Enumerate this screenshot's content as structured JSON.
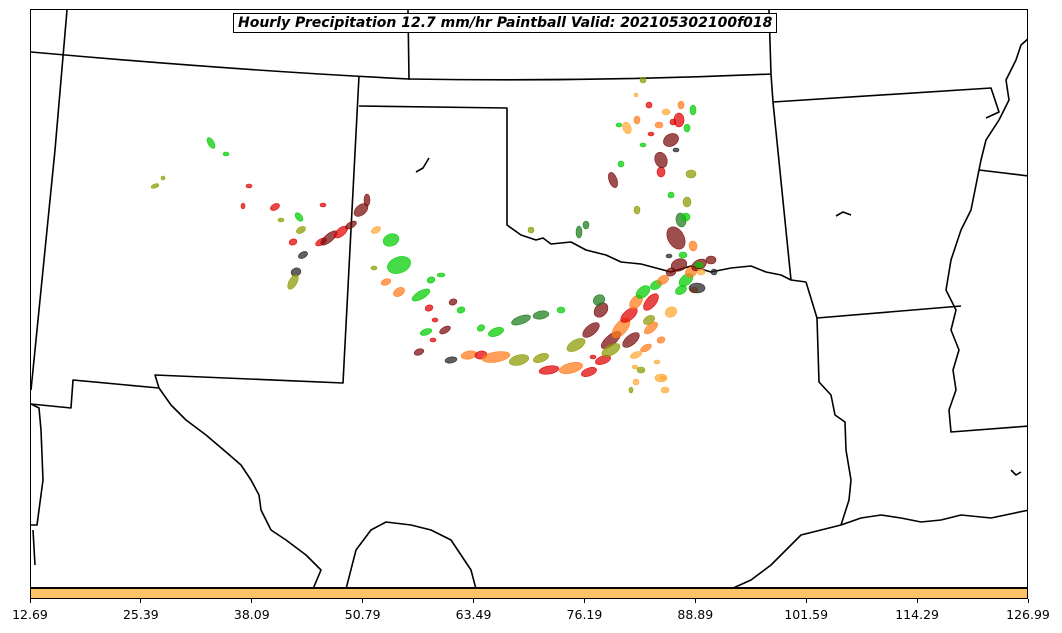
{
  "title": "Hourly Precipitation 12.7 mm/hr Paintball Valid: 202105302100f018",
  "colorbar": {
    "color": "#ffc266",
    "ticks": [
      "12.69",
      "25.39",
      "38.09",
      "50.79",
      "63.49",
      "76.19",
      "88.89",
      "101.59",
      "114.29",
      "126.99"
    ]
  },
  "palette": [
    "#e00000",
    "#00cc00",
    "#ff7a1a",
    "#1a7a1a",
    "#7a0a0a",
    "#8a9a00",
    "#ffa833",
    "#222222"
  ]
}
